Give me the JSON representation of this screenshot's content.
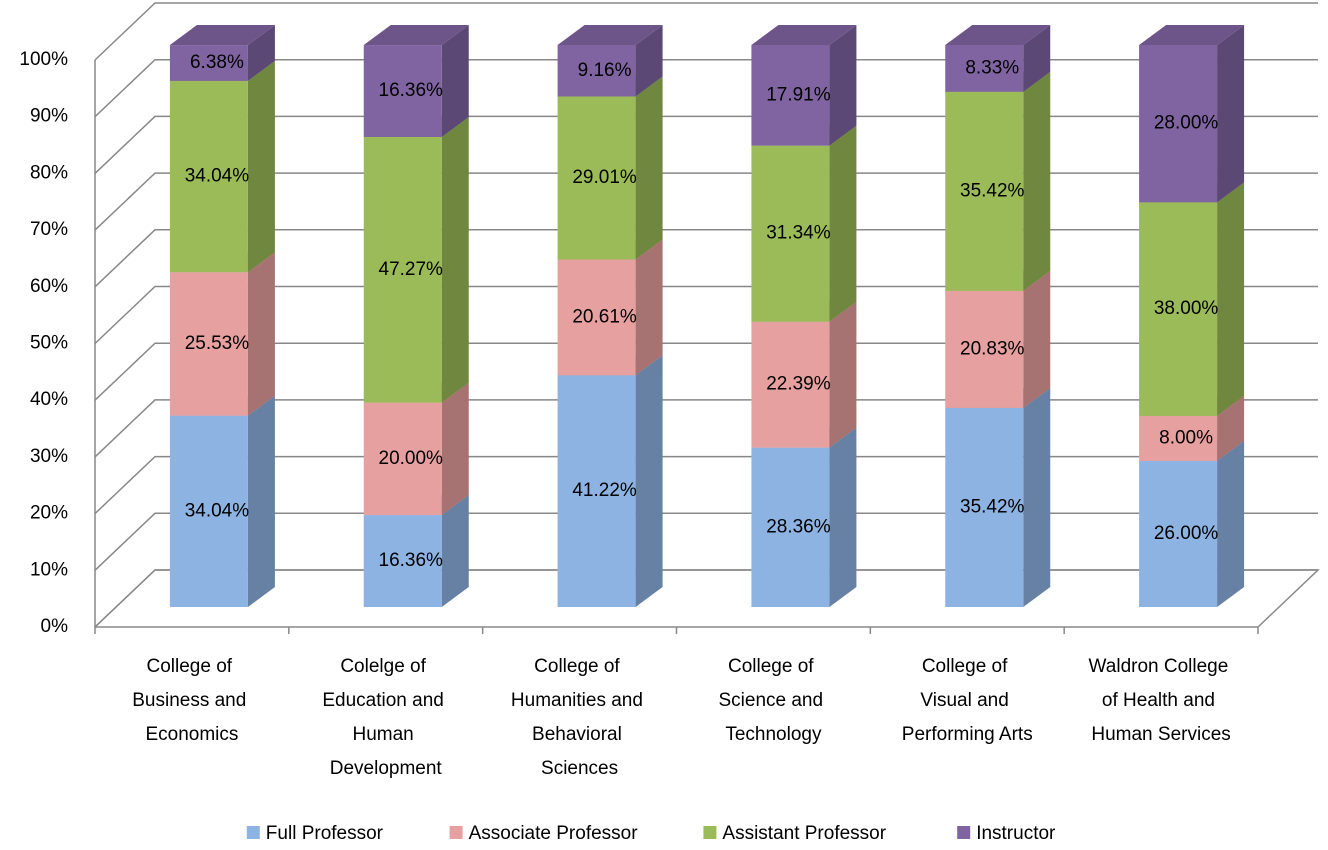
{
  "chart_data": {
    "type": "bar3d_stacked",
    "categories": [
      "College of Business and Economics",
      "Colelge of Education and Human Development",
      "College of Humanities and Behavioral Sciences",
      "College of Science and Technology",
      "College of Visual and Performing Arts",
      "Waldron College of Health and Human Services"
    ],
    "series": [
      {
        "name": "Full Professor",
        "color": "#8db3e2",
        "values": [
          34.04,
          16.36,
          41.22,
          28.36,
          35.42,
          26.0
        ],
        "value_labels": [
          "34.04%",
          "16.36%",
          "41.22%",
          "28.36%",
          "35.42%",
          "26.00%"
        ]
      },
      {
        "name": "Associate Professor",
        "color": "#e6a09f",
        "values": [
          25.53,
          20.0,
          20.61,
          22.39,
          20.83,
          8.0
        ],
        "value_labels": [
          "25.53%",
          "20.00%",
          "20.61%",
          "22.39%",
          "20.83%",
          "8.00%"
        ]
      },
      {
        "name": "Assistant Professor",
        "color": "#9bbb59",
        "values": [
          34.04,
          47.27,
          29.01,
          31.34,
          35.42,
          38.0
        ],
        "value_labels": [
          "34.04%",
          "47.27%",
          "29.01%",
          "31.34%",
          "35.42%",
          "38.00%"
        ]
      },
      {
        "name": "Instructor",
        "color": "#8064a2",
        "values": [
          6.38,
          16.36,
          9.16,
          17.91,
          8.33,
          28.0
        ],
        "value_labels": [
          "6.38%",
          "16.36%",
          "9.16%",
          "17.91%",
          "8.33%",
          "28.00%"
        ]
      }
    ],
    "ylim": [
      0,
      100
    ],
    "yticks": [
      {
        "value": 0,
        "label": "0%"
      },
      {
        "value": 10,
        "label": "10%"
      },
      {
        "value": 20,
        "label": "20%"
      },
      {
        "value": 30,
        "label": "30%"
      },
      {
        "value": 40,
        "label": "40%"
      },
      {
        "value": 50,
        "label": "50%"
      },
      {
        "value": 60,
        "label": "60%"
      },
      {
        "value": 70,
        "label": "70%"
      },
      {
        "value": 80,
        "label": "80%"
      },
      {
        "value": 90,
        "label": "90%"
      },
      {
        "value": 100,
        "label": "100%"
      }
    ],
    "grid": true,
    "legend": "bottom"
  }
}
